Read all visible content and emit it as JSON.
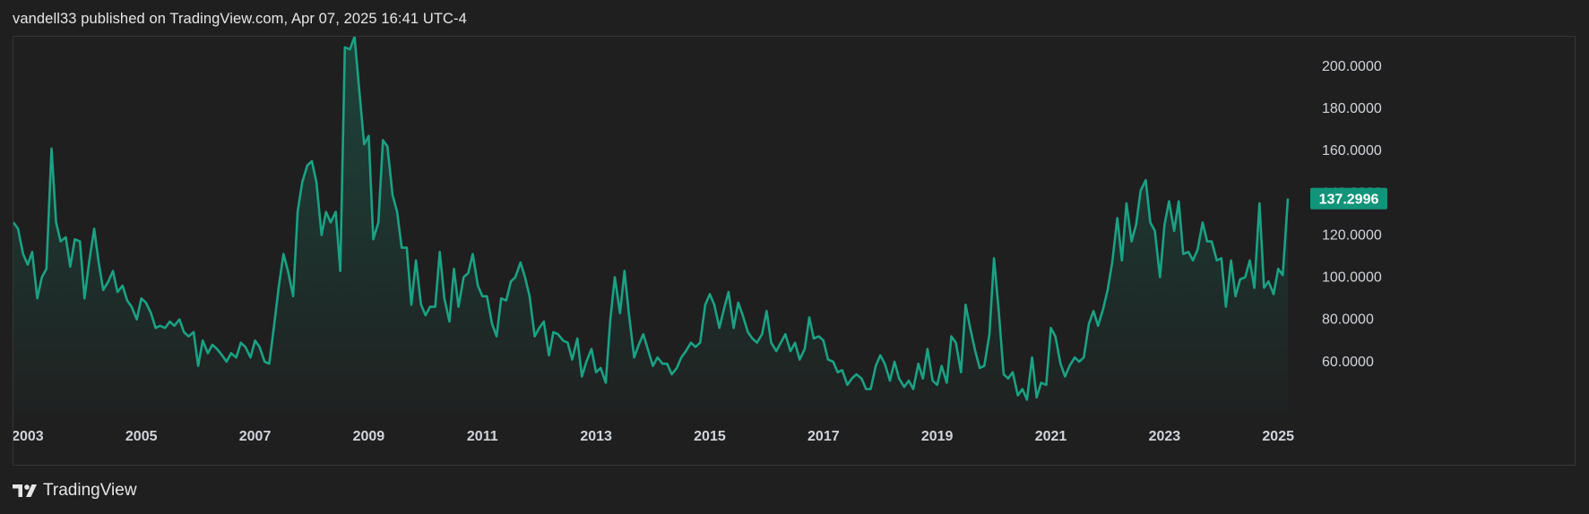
{
  "header": {
    "published_text": "vandell33 published on TradingView.com, Apr 07, 2025 16:41 UTC-4"
  },
  "footer": {
    "brand_icon": "tradingview-logo-icon",
    "brand_label": "TradingView"
  },
  "colors": {
    "background": "#1f1f1f",
    "line": "#1aa284",
    "label_bg": "#10947a"
  },
  "chart_data": {
    "type": "area",
    "title": "",
    "xlabel": "",
    "ylabel": "",
    "grid": false,
    "x_range": [
      2002.75,
      2025.4
    ],
    "ylim": [
      40,
      214
    ],
    "y_ticks": [
      "200.0000",
      "180.0000",
      "160.0000",
      "140.0000",
      "120.0000",
      "100.0000",
      "80.0000",
      "60.0000"
    ],
    "x_ticks": [
      "2003",
      "2005",
      "2007",
      "2009",
      "2011",
      "2013",
      "2015",
      "2017",
      "2019",
      "2021",
      "2023",
      "2025"
    ],
    "last_value_label": "137.2996",
    "series": [
      {
        "name": "",
        "points": [
          [
            2002.75,
            126
          ],
          [
            2002.83,
            123
          ],
          [
            2002.92,
            111
          ],
          [
            2003.0,
            106
          ],
          [
            2003.08,
            112
          ],
          [
            2003.17,
            90
          ],
          [
            2003.25,
            100
          ],
          [
            2003.33,
            104
          ],
          [
            2003.42,
            161
          ],
          [
            2003.5,
            126
          ],
          [
            2003.58,
            117
          ],
          [
            2003.67,
            119
          ],
          [
            2003.75,
            105
          ],
          [
            2003.83,
            118
          ],
          [
            2003.92,
            117
          ],
          [
            2004.0,
            90
          ],
          [
            2004.08,
            107
          ],
          [
            2004.17,
            123
          ],
          [
            2004.25,
            107
          ],
          [
            2004.33,
            94
          ],
          [
            2004.42,
            98
          ],
          [
            2004.5,
            103
          ],
          [
            2004.58,
            93
          ],
          [
            2004.67,
            96
          ],
          [
            2004.75,
            89
          ],
          [
            2004.83,
            86
          ],
          [
            2004.92,
            80
          ],
          [
            2005.0,
            90
          ],
          [
            2005.08,
            88
          ],
          [
            2005.17,
            83
          ],
          [
            2005.25,
            76
          ],
          [
            2005.33,
            77
          ],
          [
            2005.42,
            76
          ],
          [
            2005.5,
            79
          ],
          [
            2005.58,
            77
          ],
          [
            2005.67,
            80
          ],
          [
            2005.75,
            74
          ],
          [
            2005.83,
            72
          ],
          [
            2005.92,
            74
          ],
          [
            2006.0,
            58
          ],
          [
            2006.08,
            70
          ],
          [
            2006.17,
            64
          ],
          [
            2006.25,
            68
          ],
          [
            2006.33,
            66
          ],
          [
            2006.42,
            63
          ],
          [
            2006.5,
            60
          ],
          [
            2006.58,
            64
          ],
          [
            2006.67,
            62
          ],
          [
            2006.75,
            69
          ],
          [
            2006.83,
            67
          ],
          [
            2006.92,
            62
          ],
          [
            2007.0,
            70
          ],
          [
            2007.08,
            67
          ],
          [
            2007.17,
            60
          ],
          [
            2007.25,
            59
          ],
          [
            2007.33,
            76
          ],
          [
            2007.42,
            96
          ],
          [
            2007.5,
            111
          ],
          [
            2007.58,
            103
          ],
          [
            2007.67,
            91
          ],
          [
            2007.75,
            131
          ],
          [
            2007.83,
            145
          ],
          [
            2007.92,
            153
          ],
          [
            2008.0,
            155
          ],
          [
            2008.08,
            145
          ],
          [
            2008.17,
            120
          ],
          [
            2008.25,
            131
          ],
          [
            2008.33,
            126
          ],
          [
            2008.42,
            131
          ],
          [
            2008.5,
            103
          ],
          [
            2008.58,
            209
          ],
          [
            2008.67,
            208
          ],
          [
            2008.75,
            214
          ],
          [
            2008.83,
            190
          ],
          [
            2008.92,
            163
          ],
          [
            2009.0,
            167
          ],
          [
            2009.08,
            118
          ],
          [
            2009.17,
            126
          ],
          [
            2009.25,
            165
          ],
          [
            2009.33,
            162
          ],
          [
            2009.42,
            139
          ],
          [
            2009.5,
            131
          ],
          [
            2009.58,
            114
          ],
          [
            2009.67,
            114
          ],
          [
            2009.75,
            87
          ],
          [
            2009.83,
            108
          ],
          [
            2009.92,
            87
          ],
          [
            2010.0,
            82
          ],
          [
            2010.08,
            86
          ],
          [
            2010.17,
            86
          ],
          [
            2010.25,
            112
          ],
          [
            2010.33,
            90
          ],
          [
            2010.42,
            79
          ],
          [
            2010.5,
            104
          ],
          [
            2010.58,
            86
          ],
          [
            2010.67,
            100
          ],
          [
            2010.75,
            102
          ],
          [
            2010.83,
            111
          ],
          [
            2010.92,
            96
          ],
          [
            2011.0,
            91
          ],
          [
            2011.08,
            91
          ],
          [
            2011.17,
            78
          ],
          [
            2011.25,
            72
          ],
          [
            2011.33,
            90
          ],
          [
            2011.42,
            89
          ],
          [
            2011.5,
            98
          ],
          [
            2011.58,
            100
          ],
          [
            2011.67,
            107
          ],
          [
            2011.75,
            100
          ],
          [
            2011.83,
            91
          ],
          [
            2011.92,
            72
          ],
          [
            2012.0,
            76
          ],
          [
            2012.08,
            79
          ],
          [
            2012.17,
            63
          ],
          [
            2012.25,
            74
          ],
          [
            2012.33,
            73
          ],
          [
            2012.42,
            70
          ],
          [
            2012.5,
            69
          ],
          [
            2012.58,
            61
          ],
          [
            2012.67,
            71
          ],
          [
            2012.75,
            53
          ],
          [
            2012.83,
            60
          ],
          [
            2012.92,
            66
          ],
          [
            2013.0,
            55
          ],
          [
            2013.08,
            57
          ],
          [
            2013.17,
            50
          ],
          [
            2013.25,
            80
          ],
          [
            2013.33,
            100
          ],
          [
            2013.42,
            83
          ],
          [
            2013.5,
            103
          ],
          [
            2013.58,
            82
          ],
          [
            2013.67,
            62
          ],
          [
            2013.75,
            68
          ],
          [
            2013.83,
            73
          ],
          [
            2013.92,
            65
          ],
          [
            2014.0,
            58
          ],
          [
            2014.08,
            62
          ],
          [
            2014.17,
            59
          ],
          [
            2014.25,
            59
          ],
          [
            2014.33,
            54
          ],
          [
            2014.42,
            57
          ],
          [
            2014.5,
            62
          ],
          [
            2014.58,
            65
          ],
          [
            2014.67,
            69
          ],
          [
            2014.75,
            67
          ],
          [
            2014.83,
            69
          ],
          [
            2014.92,
            87
          ],
          [
            2015.0,
            92
          ],
          [
            2015.08,
            87
          ],
          [
            2015.17,
            76
          ],
          [
            2015.25,
            85
          ],
          [
            2015.33,
            93
          ],
          [
            2015.42,
            76
          ],
          [
            2015.5,
            88
          ],
          [
            2015.58,
            82
          ],
          [
            2015.67,
            74
          ],
          [
            2015.75,
            71
          ],
          [
            2015.83,
            69
          ],
          [
            2015.92,
            73
          ],
          [
            2016.0,
            84
          ],
          [
            2016.08,
            69
          ],
          [
            2016.17,
            65
          ],
          [
            2016.25,
            69
          ],
          [
            2016.33,
            73
          ],
          [
            2016.42,
            65
          ],
          [
            2016.5,
            69
          ],
          [
            2016.58,
            61
          ],
          [
            2016.67,
            66
          ],
          [
            2016.75,
            81
          ],
          [
            2016.83,
            71
          ],
          [
            2016.92,
            72
          ],
          [
            2017.0,
            70
          ],
          [
            2017.08,
            61
          ],
          [
            2017.17,
            60
          ],
          [
            2017.25,
            55
          ],
          [
            2017.33,
            56
          ],
          [
            2017.42,
            49
          ],
          [
            2017.5,
            52
          ],
          [
            2017.58,
            54
          ],
          [
            2017.67,
            52
          ],
          [
            2017.75,
            47
          ],
          [
            2017.83,
            47
          ],
          [
            2017.92,
            58
          ],
          [
            2018.0,
            63
          ],
          [
            2018.08,
            59
          ],
          [
            2018.17,
            51
          ],
          [
            2018.25,
            60
          ],
          [
            2018.33,
            52
          ],
          [
            2018.42,
            48
          ],
          [
            2018.5,
            51
          ],
          [
            2018.58,
            47
          ],
          [
            2018.67,
            59
          ],
          [
            2018.75,
            52
          ],
          [
            2018.83,
            66
          ],
          [
            2018.92,
            51
          ],
          [
            2019.0,
            49
          ],
          [
            2019.08,
            58
          ],
          [
            2019.17,
            50
          ],
          [
            2019.25,
            72
          ],
          [
            2019.33,
            69
          ],
          [
            2019.42,
            55
          ],
          [
            2019.5,
            87
          ],
          [
            2019.58,
            76
          ],
          [
            2019.67,
            65
          ],
          [
            2019.75,
            57
          ],
          [
            2019.83,
            58
          ],
          [
            2019.92,
            73
          ],
          [
            2020.0,
            109
          ],
          [
            2020.08,
            85
          ],
          [
            2020.17,
            54
          ],
          [
            2020.25,
            52
          ],
          [
            2020.33,
            55
          ],
          [
            2020.42,
            44
          ],
          [
            2020.5,
            47
          ],
          [
            2020.58,
            42
          ],
          [
            2020.67,
            62
          ],
          [
            2020.75,
            43
          ],
          [
            2020.83,
            50
          ],
          [
            2020.92,
            49
          ],
          [
            2021.0,
            76
          ],
          [
            2021.08,
            72
          ],
          [
            2021.17,
            59
          ],
          [
            2021.25,
            53
          ],
          [
            2021.33,
            58
          ],
          [
            2021.42,
            62
          ],
          [
            2021.5,
            60
          ],
          [
            2021.58,
            62
          ],
          [
            2021.67,
            78
          ],
          [
            2021.75,
            84
          ],
          [
            2021.83,
            77
          ],
          [
            2021.92,
            85
          ],
          [
            2022.0,
            94
          ],
          [
            2022.08,
            107
          ],
          [
            2022.17,
            128
          ],
          [
            2022.25,
            108
          ],
          [
            2022.33,
            135
          ],
          [
            2022.42,
            117
          ],
          [
            2022.5,
            125
          ],
          [
            2022.58,
            141
          ],
          [
            2022.67,
            146
          ],
          [
            2022.75,
            126
          ],
          [
            2022.83,
            122
          ],
          [
            2022.92,
            100
          ],
          [
            2023.0,
            125
          ],
          [
            2023.08,
            136
          ],
          [
            2023.17,
            122
          ],
          [
            2023.25,
            136
          ],
          [
            2023.33,
            111
          ],
          [
            2023.42,
            112
          ],
          [
            2023.5,
            108
          ],
          [
            2023.58,
            113
          ],
          [
            2023.67,
            126
          ],
          [
            2023.75,
            117
          ],
          [
            2023.83,
            117
          ],
          [
            2023.92,
            108
          ],
          [
            2024.0,
            109
          ],
          [
            2024.08,
            86
          ],
          [
            2024.17,
            108
          ],
          [
            2024.25,
            91
          ],
          [
            2024.33,
            99
          ],
          [
            2024.42,
            100
          ],
          [
            2024.5,
            108
          ],
          [
            2024.58,
            95
          ],
          [
            2024.67,
            135
          ],
          [
            2024.75,
            95
          ],
          [
            2024.83,
            98
          ],
          [
            2024.92,
            92
          ],
          [
            2025.0,
            104
          ],
          [
            2025.08,
            101
          ],
          [
            2025.17,
            137.3
          ]
        ]
      }
    ]
  }
}
